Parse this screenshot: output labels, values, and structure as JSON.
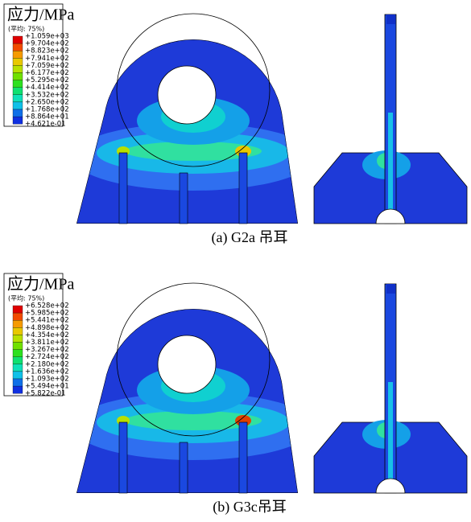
{
  "panels": [
    {
      "legend": {
        "title": "应力/MPa",
        "subtitle": "(平均: 75%)",
        "values": [
          "+1.059e+03",
          "+9.704e+02",
          "+8.823e+02",
          "+7.941e+02",
          "+7.059e+02",
          "+6.177e+02",
          "+5.295e+02",
          "+4.414e+02",
          "+3.532e+02",
          "+2.650e+02",
          "+1.768e+02",
          "+8.864e+01",
          "+4.621e-01"
        ]
      },
      "caption": "(a) G2a 吊耳"
    },
    {
      "legend": {
        "title": "应力/MPa",
        "subtitle": "(平均: 75%)",
        "values": [
          "+6.528e+02",
          "+5.985e+02",
          "+5.441e+02",
          "+4.898e+02",
          "+4.354e+02",
          "+3.811e+02",
          "+3.267e+02",
          "+2.724e+02",
          "+2.180e+02",
          "+1.636e+02",
          "+1.093e+02",
          "+5.494e+01",
          "+5.822e-01"
        ]
      },
      "caption": "(b) G3c吊耳"
    }
  ]
}
